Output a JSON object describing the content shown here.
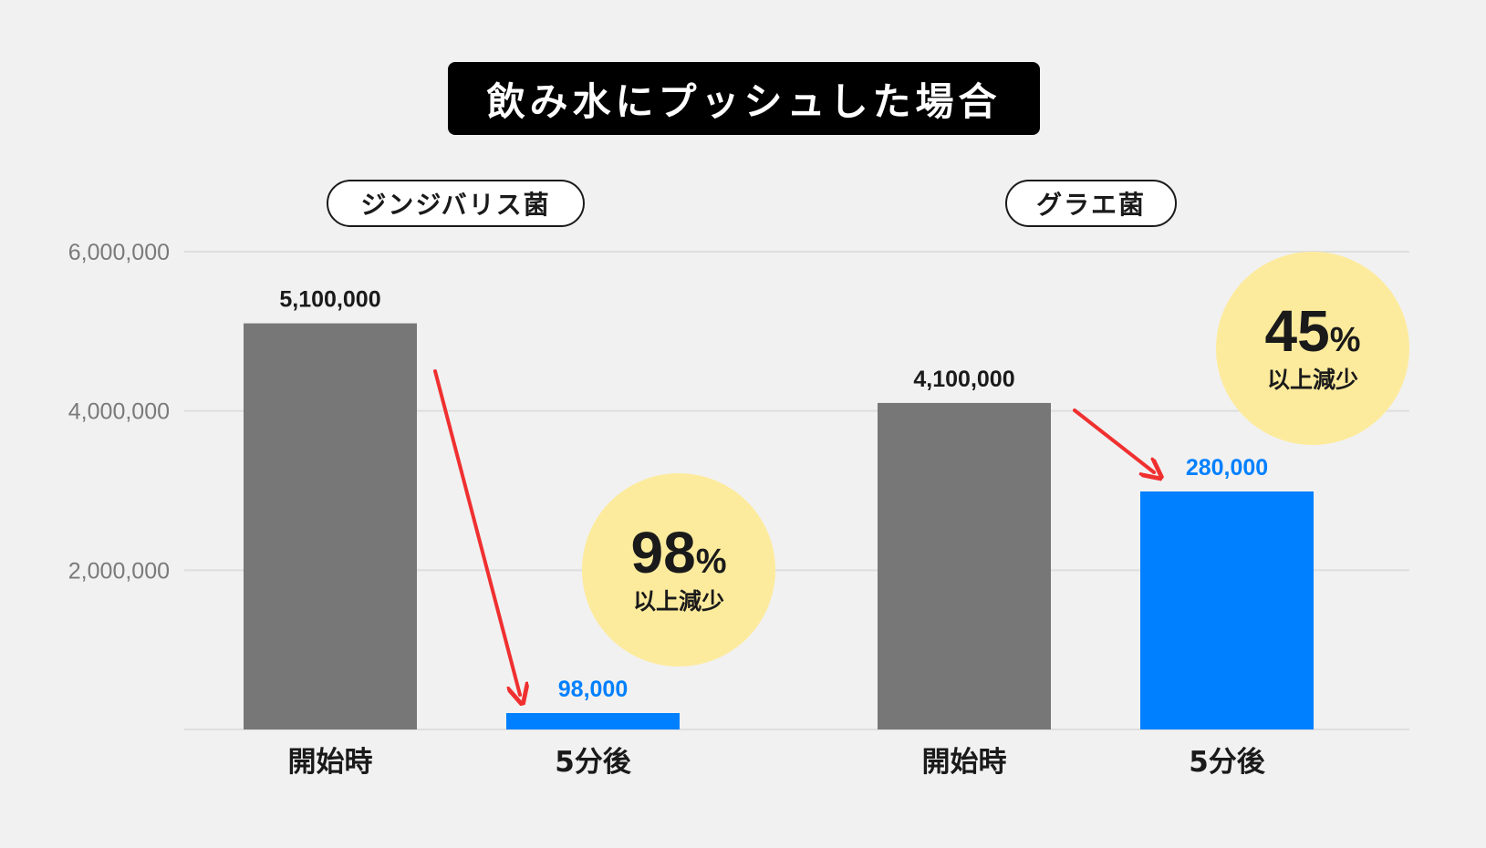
{
  "title": "飲み水にプッシュした場合",
  "chart_data": {
    "type": "bar",
    "ylim": [
      0,
      6000000
    ],
    "y_ticks": [
      {
        "value": 2000000,
        "label": "2,000,000"
      },
      {
        "value": 4000000,
        "label": "4,000,000"
      },
      {
        "value": 6000000,
        "label": "6,000,000"
      }
    ],
    "grid": true,
    "colors": {
      "before": "#777777",
      "after": "#0080ff",
      "arrow": "#f03030",
      "badge": "#fdeb9d"
    },
    "groups": [
      {
        "name": "ジンジバリス菌",
        "bars": [
          {
            "category": "開始時",
            "value": 5100000,
            "label": "5,100,000"
          },
          {
            "category": "5分後",
            "value": 98000,
            "label": "98,000"
          }
        ],
        "badge": {
          "percent": "98",
          "sign": "%",
          "text": "以上減少"
        }
      },
      {
        "name": "グラエ菌",
        "bars": [
          {
            "category": "開始時",
            "value": 4100000,
            "label": "4,100,000"
          },
          {
            "category": "5分後",
            "value": 280000,
            "label": "280,000"
          }
        ],
        "badge": {
          "percent": "45",
          "sign": "%",
          "text": "以上減少"
        }
      }
    ]
  }
}
